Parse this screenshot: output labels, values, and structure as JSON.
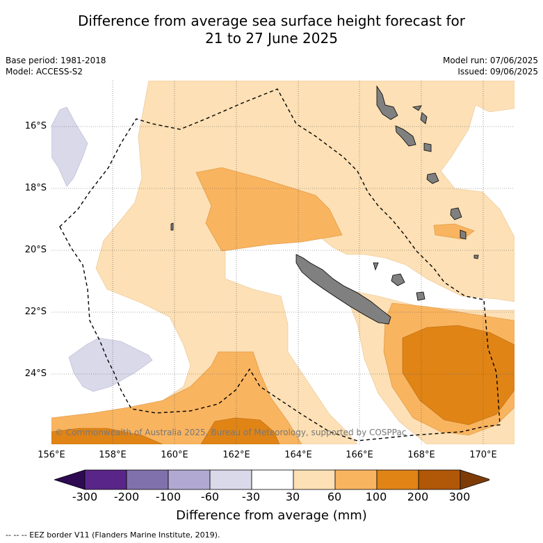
{
  "title_line1": "Difference from average sea surface height forecast for",
  "title_line2": "21 to 27 June 2025",
  "base_period": "Base period: 1981-2018",
  "model": "Model: ACCESS-S2",
  "model_run": "Model run: 07/06/2025",
  "issued": "Issued: 09/06/2025",
  "copyright": "© Commonwealth of Australia 2025, Bureau of Meteorology, supported by COSPPac",
  "lat_labels": [
    "16°S",
    "18°S",
    "20°S",
    "22°S",
    "24°S"
  ],
  "lon_labels": [
    "156°E",
    "158°E",
    "160°E",
    "162°E",
    "164°E",
    "166°E",
    "168°E",
    "170°E"
  ],
  "colorbar": {
    "ticks": [
      "-300",
      "-200",
      "-100",
      "-60",
      "-30",
      "30",
      "60",
      "100",
      "200",
      "300"
    ],
    "colors": [
      "#2d0a52",
      "#5a2588",
      "#8071ad",
      "#b1a9d2",
      "#d9d9ea",
      "#ffffff",
      "#fde0b5",
      "#f9b45f",
      "#e08416",
      "#b15708",
      "#7d3c07"
    ],
    "label": "Difference from average (mm)"
  },
  "footnote": "--  --  -- EEZ border V11 (Flanders Marine Institute, 2019).",
  "legend_colors": {
    "land": "#808080",
    "eez_border": "#000000"
  }
}
